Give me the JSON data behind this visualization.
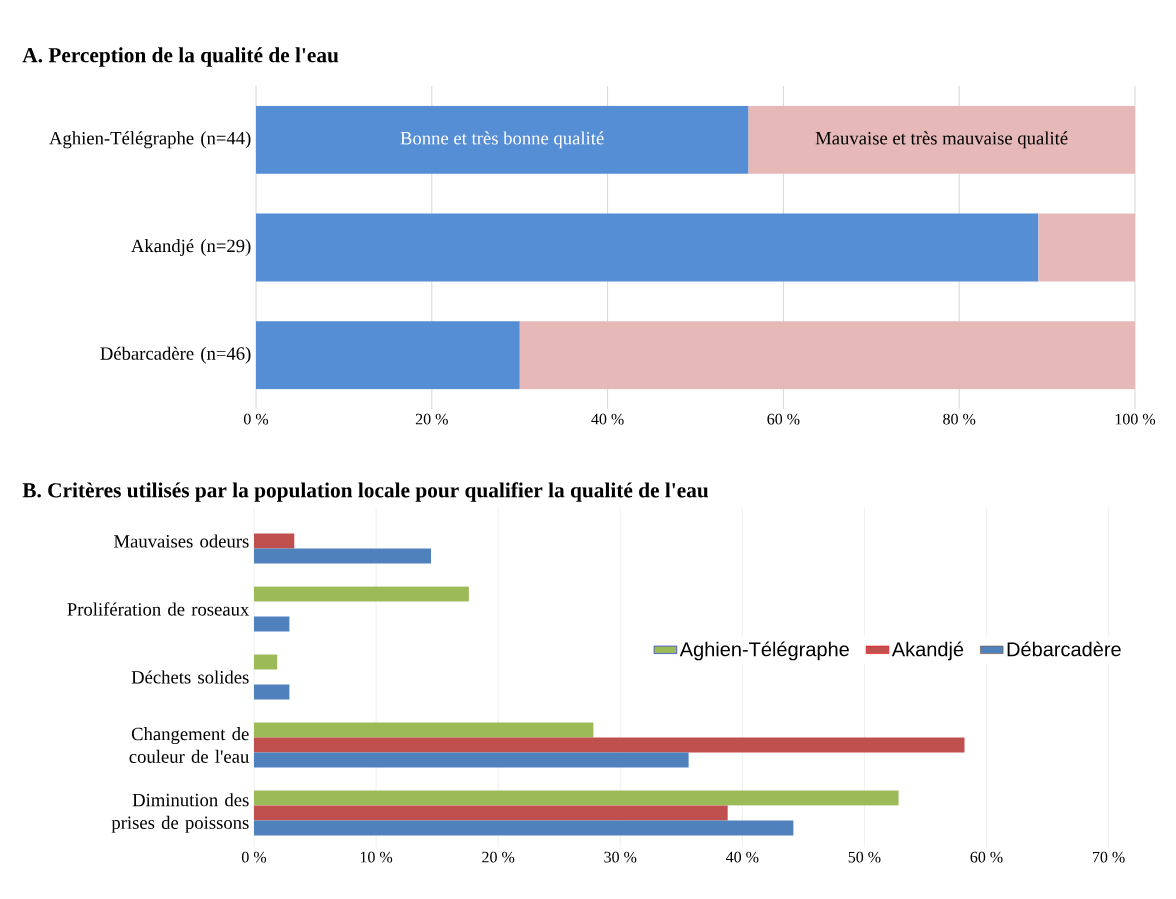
{
  "chart_data": [
    {
      "type": "bar",
      "orientation": "horizontal",
      "stacked": true,
      "title": "A. Perception de la qualité de l'eau",
      "categories": [
        "Aghien-Télégraphe (n=44)",
        "Akandjé (n=29)",
        "Débarcadère (n=46)"
      ],
      "series": [
        {
          "name": "Bonne et très bonne qualité",
          "color": "#558ed5",
          "values": [
            56,
            89,
            30
          ]
        },
        {
          "name": "Mauvaise et très mauvaise qualité",
          "color": "#e6b9b8",
          "values": [
            44,
            11,
            70
          ]
        }
      ],
      "xlim": [
        0,
        100
      ],
      "xticks": [
        {
          "value": 0,
          "label": "0 %"
        },
        {
          "value": 20,
          "label": "20 %"
        },
        {
          "value": 40,
          "label": "40 %"
        },
        {
          "value": 60,
          "label": "60 %"
        },
        {
          "value": 80,
          "label": "80 %"
        },
        {
          "value": 100,
          "label": "100 %"
        }
      ],
      "grid": "x",
      "legend": false
    },
    {
      "type": "bar",
      "orientation": "horizontal",
      "title": "B. Critères utilisés par la population locale pour qualifier la qualité de l'eau",
      "categories": [
        "Mauvaises odeurs",
        "Prolifération de roseaux",
        "Déchets solides",
        "Changement de couleur de l'eau",
        "Diminution des prises de poissons"
      ],
      "series": [
        {
          "name": "Aghien-Télégraphe",
          "color": "#9bbb59",
          "values": [
            null,
            17.6,
            1.9,
            27.8,
            52.8
          ]
        },
        {
          "name": "Akandjé",
          "color": "#c0504d",
          "values": [
            3.3,
            null,
            null,
            58.2,
            38.8
          ]
        },
        {
          "name": "Débarcadère",
          "color": "#4f81bd",
          "values": [
            14.5,
            2.9,
            2.9,
            35.6,
            44.2
          ]
        }
      ],
      "xlim": [
        0,
        72
      ],
      "xticks": [
        {
          "value": 0,
          "label": "0 %"
        },
        {
          "value": 10,
          "label": "10 %"
        },
        {
          "value": 20,
          "label": "20 %"
        },
        {
          "value": 30,
          "label": "30 %"
        },
        {
          "value": 40,
          "label": "40 %"
        },
        {
          "value": 50,
          "label": "50 %"
        },
        {
          "value": 60,
          "label": "60 %"
        },
        {
          "value": 70,
          "label": "70 %"
        }
      ],
      "grid": "x",
      "legend": "right"
    }
  ]
}
